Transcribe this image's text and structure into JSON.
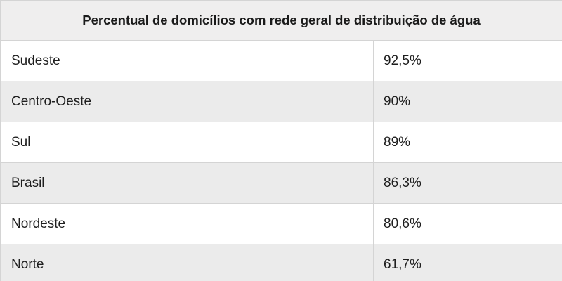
{
  "chart_data": {
    "type": "table",
    "title": "Percentual de domicílios com rede geral de distribuição de água",
    "rows": [
      {
        "region": "Sudeste",
        "value": "92,5%"
      },
      {
        "region": "Centro-Oeste",
        "value": "90%"
      },
      {
        "region": "Sul",
        "value": "89%"
      },
      {
        "region": "Brasil",
        "value": "86,3%"
      },
      {
        "region": "Nordeste",
        "value": "80,6%"
      },
      {
        "region": "Norte",
        "value": "61,7%"
      }
    ]
  }
}
